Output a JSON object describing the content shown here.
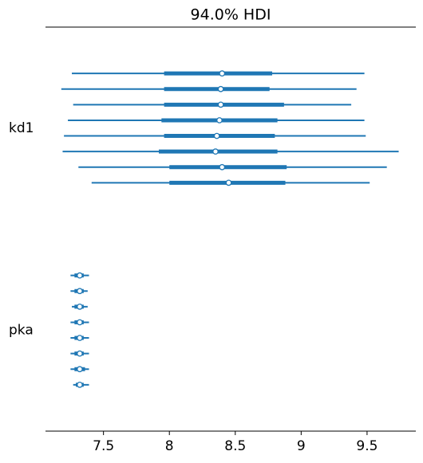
{
  "chart_data": {
    "type": "forest",
    "title": "94.0% HDI",
    "color": "#1f77b4",
    "xlim": [
      7.06,
      9.87
    ],
    "xticks": [
      7.5,
      8.0,
      8.5,
      9.0,
      9.5
    ],
    "groups": [
      {
        "name": "kd1",
        "chains": [
          {
            "hdi": [
              7.26,
              9.48
            ],
            "iqr": [
              7.96,
              8.78
            ],
            "median": 8.4
          },
          {
            "hdi": [
              7.18,
              9.42
            ],
            "iqr": [
              7.96,
              8.76
            ],
            "median": 8.39
          },
          {
            "hdi": [
              7.27,
              9.38
            ],
            "iqr": [
              7.96,
              8.87
            ],
            "median": 8.39
          },
          {
            "hdi": [
              7.23,
              9.48
            ],
            "iqr": [
              7.94,
              8.82
            ],
            "median": 8.38
          },
          {
            "hdi": [
              7.2,
              9.49
            ],
            "iqr": [
              7.96,
              8.8
            ],
            "median": 8.36
          },
          {
            "hdi": [
              7.19,
              9.74
            ],
            "iqr": [
              7.92,
              8.82
            ],
            "median": 8.35
          },
          {
            "hdi": [
              7.31,
              9.65
            ],
            "iqr": [
              8.0,
              8.89
            ],
            "median": 8.4
          },
          {
            "hdi": [
              7.41,
              9.52
            ],
            "iqr": [
              8.0,
              8.88
            ],
            "median": 8.45
          }
        ]
      },
      {
        "name": "pka",
        "chains": [
          {
            "hdi": [
              7.25,
              7.39
            ],
            "iqr": [
              7.28,
              7.35
            ],
            "median": 7.32
          },
          {
            "hdi": [
              7.25,
              7.38
            ],
            "iqr": [
              7.28,
              7.35
            ],
            "median": 7.32
          },
          {
            "hdi": [
              7.26,
              7.38
            ],
            "iqr": [
              7.28,
              7.35
            ],
            "median": 7.32
          },
          {
            "hdi": [
              7.25,
              7.39
            ],
            "iqr": [
              7.28,
              7.35
            ],
            "median": 7.32
          },
          {
            "hdi": [
              7.25,
              7.39
            ],
            "iqr": [
              7.28,
              7.35
            ],
            "median": 7.32
          },
          {
            "hdi": [
              7.25,
              7.39
            ],
            "iqr": [
              7.28,
              7.35
            ],
            "median": 7.32
          },
          {
            "hdi": [
              7.25,
              7.39
            ],
            "iqr": [
              7.28,
              7.36
            ],
            "median": 7.32
          },
          {
            "hdi": [
              7.27,
              7.39
            ],
            "iqr": [
              7.29,
              7.35
            ],
            "median": 7.32
          }
        ]
      }
    ]
  }
}
